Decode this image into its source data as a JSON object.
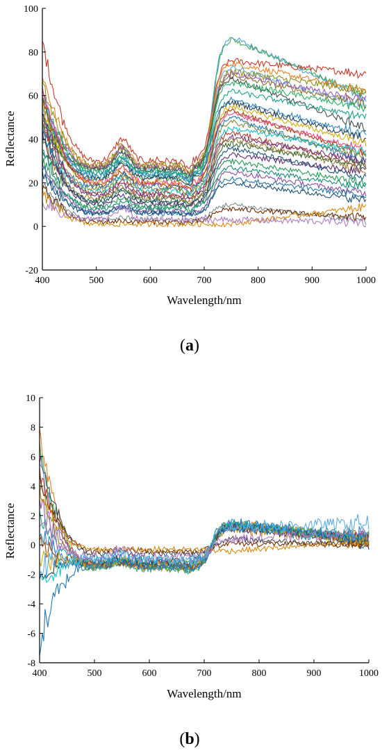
{
  "chart_data": [
    {
      "type": "line",
      "panel_label": [
        "(",
        "a",
        ")"
      ],
      "xlabel": "Wavelength/nm",
      "ylabel": "Reflectance",
      "xlim": [
        400,
        1000
      ],
      "ylim": [
        -20,
        100
      ],
      "xticks": [
        400,
        500,
        600,
        700,
        800,
        900,
        1000
      ],
      "yticks": [
        -20,
        0,
        20,
        40,
        60,
        80,
        100
      ],
      "grid": false,
      "legend": "none",
      "series_params": [
        {
          "a": 55,
          "g": 8,
          "m": 24,
          "r": 87,
          "e": 58,
          "c": "#4a9ed8",
          "n": 1.2
        },
        {
          "a": 50,
          "g": 7,
          "m": 22,
          "r": 86,
          "e": 60,
          "c": "#3fa85a",
          "n": 1.2
        },
        {
          "a": 85,
          "g": 10,
          "m": 30,
          "r": 76,
          "e": 70,
          "c": "#c0392b",
          "n": 1.5
        },
        {
          "a": 70,
          "g": 9,
          "m": 28,
          "r": 75,
          "e": 62,
          "c": "#e67e22",
          "n": 1.4
        },
        {
          "a": 60,
          "g": 9,
          "m": 26,
          "r": 73,
          "e": 55,
          "c": "#5dade2",
          "n": 1.2
        },
        {
          "a": 65,
          "g": 9,
          "m": 28,
          "r": 71,
          "e": 62,
          "c": "#8e8e1c",
          "n": 1.6
        },
        {
          "a": 60,
          "g": 9,
          "m": 27,
          "r": 70,
          "e": 58,
          "c": "#9b59b6",
          "n": 1.3
        },
        {
          "a": 55,
          "g": 8,
          "m": 27,
          "r": 69,
          "e": 56,
          "c": "#8b6f2a",
          "n": 1.4
        },
        {
          "a": 50,
          "g": 8,
          "m": 26,
          "r": 68,
          "e": 45,
          "c": "#404a50",
          "n": 1.3
        },
        {
          "a": 60,
          "g": 7,
          "m": 25,
          "r": 66,
          "e": 54,
          "c": "#27ae60",
          "n": 1.3
        },
        {
          "a": 45,
          "g": 7,
          "m": 24,
          "r": 62,
          "e": 50,
          "c": "#16a085",
          "n": 1.2
        },
        {
          "a": 58,
          "g": 7,
          "m": 23,
          "r": 58,
          "e": 42,
          "c": "#2e86c1",
          "n": 1.3
        },
        {
          "a": 50,
          "g": 7,
          "m": 22,
          "r": 57,
          "e": 40,
          "c": "#2c3e50",
          "n": 1.3
        },
        {
          "a": 55,
          "g": 7,
          "m": 20,
          "r": 55,
          "e": 38,
          "c": "#d4ac0d",
          "n": 1.2
        },
        {
          "a": 60,
          "g": 6,
          "m": 19,
          "r": 53,
          "e": 33,
          "c": "#a04000",
          "n": 1.2
        },
        {
          "a": 62,
          "g": 7,
          "m": 20,
          "r": 52,
          "e": 35,
          "c": "#e74c8c",
          "n": 1.3
        },
        {
          "a": 45,
          "g": 6,
          "m": 18,
          "r": 50,
          "e": 30,
          "c": "#1f77b4",
          "n": 1.2
        },
        {
          "a": 50,
          "g": 6,
          "m": 17,
          "r": 48,
          "e": 32,
          "c": "#7d8a3a",
          "n": 1.2
        },
        {
          "a": 40,
          "g": 6,
          "m": 16,
          "r": 45,
          "e": 34,
          "c": "#17becf",
          "n": 1.2
        },
        {
          "a": 48,
          "g": 6,
          "m": 15,
          "r": 43,
          "e": 28,
          "c": "#b03a2e",
          "n": 1.3
        },
        {
          "a": 52,
          "g": 5,
          "m": 14,
          "r": 41,
          "e": 30,
          "c": "#6c3483",
          "n": 1.2
        },
        {
          "a": 40,
          "g": 5,
          "m": 13,
          "r": 40,
          "e": 26,
          "c": "#a07c30",
          "n": 1.3
        },
        {
          "a": 35,
          "g": 5,
          "m": 12,
          "r": 38,
          "e": 28,
          "c": "#3a6b35",
          "n": 1.2
        },
        {
          "a": 45,
          "g": 5,
          "m": 11,
          "r": 36,
          "e": 22,
          "c": "#1a5276",
          "n": 1.2
        },
        {
          "a": 42,
          "g": 4,
          "m": 10,
          "r": 33,
          "e": 25,
          "c": "#5b2c6f",
          "n": 1.2
        },
        {
          "a": 30,
          "g": 4,
          "m": 9,
          "r": 30,
          "e": 20,
          "c": "#229954",
          "n": 1.2
        },
        {
          "a": 35,
          "g": 3,
          "m": 8,
          "r": 27,
          "e": 18,
          "c": "#138d75",
          "n": 1.2
        },
        {
          "a": 30,
          "g": 3,
          "m": 7,
          "r": 25,
          "e": 15,
          "c": "#884ea0",
          "n": 1.2
        },
        {
          "a": 28,
          "g": 3,
          "m": 6,
          "r": 22,
          "e": 14,
          "c": "#2874a6",
          "n": 1.2
        },
        {
          "a": 25,
          "g": 3,
          "m": 6,
          "r": 20,
          "e": 12,
          "c": "#1b4f72",
          "n": 1.2
        },
        {
          "a": 20,
          "g": 1,
          "m": 3,
          "r": 10,
          "e": 2,
          "c": "#7f8c8d",
          "n": 1.2
        },
        {
          "a": 18,
          "g": 0.5,
          "m": 2,
          "r": 8,
          "e": 4,
          "c": "#6e2c00",
          "n": 1.2
        },
        {
          "a": 15,
          "g": 0,
          "m": 1,
          "r": 1,
          "e": 9,
          "c": "#d68910",
          "n": 1.2
        },
        {
          "a": 12,
          "g": 5,
          "m": 3,
          "r": 3,
          "e": 2,
          "c": "#af7ac5",
          "n": 1.5
        }
      ]
    },
    {
      "type": "line",
      "panel_label": [
        "(",
        "b",
        ")"
      ],
      "xlabel": "Wavelength/nm",
      "ylabel": "Reflectance",
      "xlim": [
        400,
        1000
      ],
      "ylim": [
        -8,
        10
      ],
      "xticks": [
        400,
        500,
        600,
        700,
        800,
        900,
        1000
      ],
      "yticks": [
        -8,
        -6,
        -4,
        -2,
        0,
        2,
        4,
        6,
        8,
        10
      ],
      "grid": false,
      "legend": "none",
      "series_params": [
        {
          "a": 7.5,
          "g": 0.3,
          "m": -1.5,
          "r": 1.5,
          "e": 0.4,
          "c": "#e67e22",
          "n": 0.25
        },
        {
          "a": 6.5,
          "g": 0.4,
          "m": -1.6,
          "r": 1.4,
          "e": 0.5,
          "c": "#3fa85a",
          "n": 0.25
        },
        {
          "a": 5.5,
          "g": 0.35,
          "m": -1.4,
          "r": 1.5,
          "e": 0.3,
          "c": "#4a9ed8",
          "n": 0.3
        },
        {
          "a": 5.0,
          "g": 0.2,
          "m": -1.3,
          "r": 1.3,
          "e": 0.5,
          "c": "#c0392b",
          "n": 0.25
        },
        {
          "a": 4.0,
          "g": 0.5,
          "m": -1.5,
          "r": 1.4,
          "e": 0.6,
          "c": "#8e8e1c",
          "n": 0.25
        },
        {
          "a": 3.0,
          "g": 0.3,
          "m": -1.2,
          "r": 1.2,
          "e": 0.4,
          "c": "#9b59b6",
          "n": 0.3
        },
        {
          "a": 2.0,
          "g": 0.2,
          "m": -1.4,
          "r": 1.5,
          "e": 0.2,
          "c": "#16a085",
          "n": 0.25
        },
        {
          "a": 1.0,
          "g": 0.3,
          "m": -1.5,
          "r": 1.3,
          "e": 0.5,
          "c": "#2e86c1",
          "n": 0.25
        },
        {
          "a": 0.0,
          "g": 0.2,
          "m": -1.3,
          "r": 1.2,
          "e": 0.3,
          "c": "#a04000",
          "n": 0.3
        },
        {
          "a": -1.0,
          "g": 0.1,
          "m": -1.2,
          "r": 1.1,
          "e": 0.2,
          "c": "#d4ac0d",
          "n": 0.3
        },
        {
          "a": -2.0,
          "g": 0.1,
          "m": -1.1,
          "r": 1.2,
          "e": 0.3,
          "c": "#2c3e50",
          "n": 0.3
        },
        {
          "a": -2.5,
          "g": 0.0,
          "m": -1.0,
          "r": 1.3,
          "e": 0.5,
          "c": "#17becf",
          "n": 0.3
        },
        {
          "a": -6.5,
          "g": 0.2,
          "m": -1.2,
          "r": 1.4,
          "e": 0.4,
          "c": "#1f77b4",
          "n": 0.5
        },
        {
          "a": 6.0,
          "g": 0.1,
          "m": -0.6,
          "r": 0.4,
          "e": 0.0,
          "c": "#404a50",
          "n": 0.2
        },
        {
          "a": 4.5,
          "g": 0.1,
          "m": -0.4,
          "r": 0.1,
          "e": 0.0,
          "c": "#6e2c00",
          "n": 0.2
        },
        {
          "a": 3.5,
          "g": 0.0,
          "m": -0.3,
          "r": -0.4,
          "e": 0.2,
          "c": "#d68910",
          "n": 0.2
        },
        {
          "a": 1.5,
          "g": 0.6,
          "m": -0.8,
          "r": 0.4,
          "e": 0.8,
          "c": "#af7ac5",
          "n": 0.3
        },
        {
          "a": -1.5,
          "g": 0.4,
          "m": -1.0,
          "r": 1.2,
          "e": 1.5,
          "c": "#5dade2",
          "n": 0.4
        }
      ]
    }
  ]
}
